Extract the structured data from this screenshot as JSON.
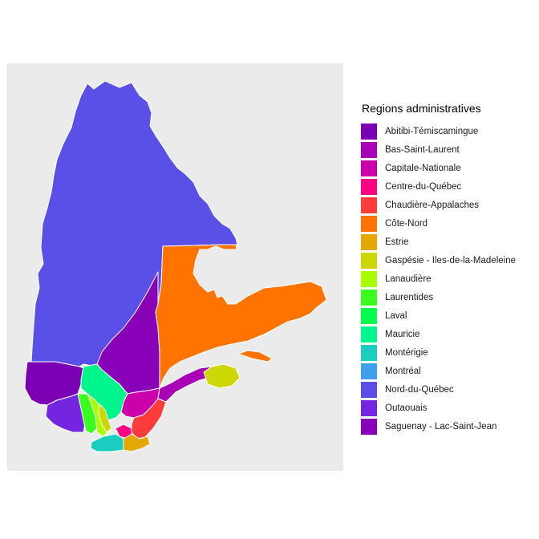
{
  "legend": {
    "title": "Regions administratives",
    "items": [
      {
        "label": "Abitibi-Témiscamingue",
        "color": "#7B00B4"
      },
      {
        "label": "Bas-Saint-Laurent",
        "color": "#A800B4"
      },
      {
        "label": "Capitale-Nationale",
        "color": "#CC00AA"
      },
      {
        "label": "Centre-du-Québec",
        "color": "#FF0080"
      },
      {
        "label": "Chaudière-Appalaches",
        "color": "#FF3B3B"
      },
      {
        "label": "Côte-Nord",
        "color": "#FF7400"
      },
      {
        "label": "Estrie",
        "color": "#E4A800"
      },
      {
        "label": "Gaspésie - Iles-de-la-Madeleine",
        "color": "#CCD600"
      },
      {
        "label": "Lanaudière",
        "color": "#A8FF00"
      },
      {
        "label": "Laurentides",
        "color": "#3AFF1E"
      },
      {
        "label": "Laval",
        "color": "#00FF4C"
      },
      {
        "label": "Mauricie",
        "color": "#00F58C"
      },
      {
        "label": "Montérigie",
        "color": "#1ACFC0"
      },
      {
        "label": "Montréal",
        "color": "#3EA0E8"
      },
      {
        "label": "Nord-du-Québec",
        "color": "#5A4FE6"
      },
      {
        "label": "Outaouais",
        "color": "#7325E0"
      },
      {
        "label": "Saguenay - Lac-Saint-Jean",
        "color": "#8800B8"
      }
    ]
  }
}
